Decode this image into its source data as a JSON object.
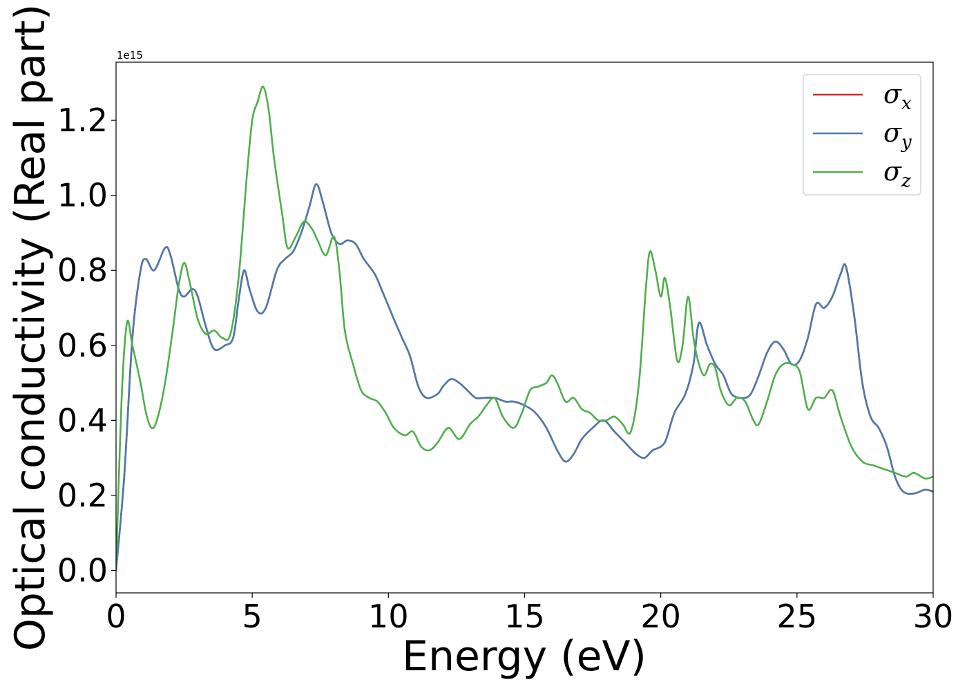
{
  "chart_data": {
    "type": "line",
    "title": "",
    "xlabel": "Energy (eV)",
    "ylabel": "Optical conductivity (Real part)",
    "y_offset_text": "1e15",
    "xlim": [
      0,
      30
    ],
    "ylim": [
      -0.06,
      1.355
    ],
    "x_ticks": [
      0,
      5,
      10,
      15,
      20,
      25,
      30
    ],
    "x_tick_labels": [
      "0",
      "5",
      "10",
      "15",
      "20",
      "25",
      "30"
    ],
    "y_ticks": [
      0.0,
      0.2,
      0.4,
      0.6,
      0.8,
      1.0,
      1.2
    ],
    "y_tick_labels": [
      "0.0",
      "0.2",
      "0.4",
      "0.6",
      "0.8",
      "1.0",
      "1.2"
    ],
    "grid": false,
    "legend_position": "top-right",
    "series": [
      {
        "name": "σx",
        "legend_symbol": "σ",
        "legend_sub": "x",
        "color": "#d62728",
        "points": [
          [
            0,
            0
          ],
          [
            0.3,
            0.25
          ],
          [
            0.6,
            0.62
          ],
          [
            0.9,
            0.8
          ],
          [
            1.1,
            0.83
          ],
          [
            1.4,
            0.8
          ],
          [
            1.8,
            0.86
          ],
          [
            2.0,
            0.84
          ],
          [
            2.3,
            0.75
          ],
          [
            2.5,
            0.73
          ],
          [
            2.8,
            0.75
          ],
          [
            3.0,
            0.73
          ],
          [
            3.3,
            0.65
          ],
          [
            3.6,
            0.59
          ],
          [
            4.0,
            0.6
          ],
          [
            4.3,
            0.62
          ],
          [
            4.5,
            0.72
          ],
          [
            4.7,
            0.8
          ],
          [
            4.9,
            0.75
          ],
          [
            5.2,
            0.69
          ],
          [
            5.5,
            0.7
          ],
          [
            5.9,
            0.8
          ],
          [
            6.2,
            0.83
          ],
          [
            6.5,
            0.85
          ],
          [
            6.8,
            0.9
          ],
          [
            7.1,
            0.97
          ],
          [
            7.35,
            1.03
          ],
          [
            7.6,
            0.98
          ],
          [
            7.9,
            0.9
          ],
          [
            8.2,
            0.87
          ],
          [
            8.5,
            0.88
          ],
          [
            8.8,
            0.87
          ],
          [
            9.1,
            0.83
          ],
          [
            9.5,
            0.79
          ],
          [
            9.8,
            0.74
          ],
          [
            10.2,
            0.67
          ],
          [
            10.5,
            0.62
          ],
          [
            10.8,
            0.57
          ],
          [
            11.1,
            0.49
          ],
          [
            11.4,
            0.46
          ],
          [
            11.8,
            0.47
          ],
          [
            12.0,
            0.49
          ],
          [
            12.3,
            0.51
          ],
          [
            12.6,
            0.5
          ],
          [
            12.9,
            0.48
          ],
          [
            13.2,
            0.46
          ],
          [
            13.5,
            0.46
          ],
          [
            13.9,
            0.46
          ],
          [
            14.3,
            0.45
          ],
          [
            14.6,
            0.45
          ],
          [
            15.0,
            0.44
          ],
          [
            15.4,
            0.42
          ],
          [
            15.8,
            0.38
          ],
          [
            16.2,
            0.32
          ],
          [
            16.5,
            0.29
          ],
          [
            16.8,
            0.31
          ],
          [
            17.1,
            0.35
          ],
          [
            17.5,
            0.38
          ],
          [
            17.9,
            0.4
          ],
          [
            18.3,
            0.37
          ],
          [
            18.7,
            0.34
          ],
          [
            19.1,
            0.31
          ],
          [
            19.4,
            0.3
          ],
          [
            19.7,
            0.32
          ],
          [
            20.0,
            0.33
          ],
          [
            20.2,
            0.35
          ],
          [
            20.5,
            0.42
          ],
          [
            20.9,
            0.47
          ],
          [
            21.2,
            0.55
          ],
          [
            21.4,
            0.66
          ],
          [
            21.7,
            0.6
          ],
          [
            22.0,
            0.55
          ],
          [
            22.3,
            0.52
          ],
          [
            22.6,
            0.47
          ],
          [
            23.0,
            0.46
          ],
          [
            23.3,
            0.47
          ],
          [
            23.6,
            0.52
          ],
          [
            23.9,
            0.58
          ],
          [
            24.2,
            0.61
          ],
          [
            24.5,
            0.59
          ],
          [
            24.8,
            0.55
          ],
          [
            25.1,
            0.56
          ],
          [
            25.4,
            0.62
          ],
          [
            25.7,
            0.71
          ],
          [
            26.0,
            0.7
          ],
          [
            26.3,
            0.73
          ],
          [
            26.6,
            0.79
          ],
          [
            26.8,
            0.81
          ],
          [
            27.1,
            0.68
          ],
          [
            27.4,
            0.5
          ],
          [
            27.7,
            0.41
          ],
          [
            28.0,
            0.38
          ],
          [
            28.3,
            0.33
          ],
          [
            28.6,
            0.25
          ],
          [
            28.9,
            0.21
          ],
          [
            29.3,
            0.205
          ],
          [
            29.7,
            0.215
          ],
          [
            30.0,
            0.21
          ]
        ]
      },
      {
        "name": "σy",
        "legend_symbol": "σ",
        "legend_sub": "y",
        "color": "#4a7bb0",
        "points": [
          [
            0,
            0
          ],
          [
            0.3,
            0.25
          ],
          [
            0.6,
            0.62
          ],
          [
            0.9,
            0.8
          ],
          [
            1.1,
            0.83
          ],
          [
            1.4,
            0.8
          ],
          [
            1.8,
            0.86
          ],
          [
            2.0,
            0.84
          ],
          [
            2.3,
            0.75
          ],
          [
            2.5,
            0.73
          ],
          [
            2.8,
            0.75
          ],
          [
            3.0,
            0.73
          ],
          [
            3.3,
            0.65
          ],
          [
            3.6,
            0.59
          ],
          [
            4.0,
            0.6
          ],
          [
            4.3,
            0.62
          ],
          [
            4.5,
            0.72
          ],
          [
            4.7,
            0.8
          ],
          [
            4.9,
            0.75
          ],
          [
            5.2,
            0.69
          ],
          [
            5.5,
            0.7
          ],
          [
            5.9,
            0.8
          ],
          [
            6.2,
            0.83
          ],
          [
            6.5,
            0.85
          ],
          [
            6.8,
            0.9
          ],
          [
            7.1,
            0.97
          ],
          [
            7.35,
            1.03
          ],
          [
            7.6,
            0.98
          ],
          [
            7.9,
            0.9
          ],
          [
            8.2,
            0.87
          ],
          [
            8.5,
            0.88
          ],
          [
            8.8,
            0.87
          ],
          [
            9.1,
            0.83
          ],
          [
            9.5,
            0.79
          ],
          [
            9.8,
            0.74
          ],
          [
            10.2,
            0.67
          ],
          [
            10.5,
            0.62
          ],
          [
            10.8,
            0.57
          ],
          [
            11.1,
            0.49
          ],
          [
            11.4,
            0.46
          ],
          [
            11.8,
            0.47
          ],
          [
            12.0,
            0.49
          ],
          [
            12.3,
            0.51
          ],
          [
            12.6,
            0.5
          ],
          [
            12.9,
            0.48
          ],
          [
            13.2,
            0.46
          ],
          [
            13.5,
            0.46
          ],
          [
            13.9,
            0.46
          ],
          [
            14.3,
            0.45
          ],
          [
            14.6,
            0.45
          ],
          [
            15.0,
            0.44
          ],
          [
            15.4,
            0.42
          ],
          [
            15.8,
            0.38
          ],
          [
            16.2,
            0.32
          ],
          [
            16.5,
            0.29
          ],
          [
            16.8,
            0.31
          ],
          [
            17.1,
            0.35
          ],
          [
            17.5,
            0.38
          ],
          [
            17.9,
            0.4
          ],
          [
            18.3,
            0.37
          ],
          [
            18.7,
            0.34
          ],
          [
            19.1,
            0.31
          ],
          [
            19.4,
            0.3
          ],
          [
            19.7,
            0.32
          ],
          [
            20.0,
            0.33
          ],
          [
            20.2,
            0.35
          ],
          [
            20.5,
            0.42
          ],
          [
            20.9,
            0.47
          ],
          [
            21.2,
            0.55
          ],
          [
            21.4,
            0.66
          ],
          [
            21.7,
            0.6
          ],
          [
            22.0,
            0.55
          ],
          [
            22.3,
            0.52
          ],
          [
            22.6,
            0.47
          ],
          [
            23.0,
            0.46
          ],
          [
            23.3,
            0.47
          ],
          [
            23.6,
            0.52
          ],
          [
            23.9,
            0.58
          ],
          [
            24.2,
            0.61
          ],
          [
            24.5,
            0.59
          ],
          [
            24.8,
            0.55
          ],
          [
            25.1,
            0.56
          ],
          [
            25.4,
            0.62
          ],
          [
            25.7,
            0.71
          ],
          [
            26.0,
            0.7
          ],
          [
            26.3,
            0.73
          ],
          [
            26.6,
            0.79
          ],
          [
            26.8,
            0.81
          ],
          [
            27.1,
            0.68
          ],
          [
            27.4,
            0.5
          ],
          [
            27.7,
            0.41
          ],
          [
            28.0,
            0.38
          ],
          [
            28.3,
            0.33
          ],
          [
            28.6,
            0.25
          ],
          [
            28.9,
            0.21
          ],
          [
            29.3,
            0.205
          ],
          [
            29.7,
            0.215
          ],
          [
            30.0,
            0.21
          ]
        ]
      },
      {
        "name": "σz",
        "legend_symbol": "σ",
        "legend_sub": "z",
        "color": "#4daf4a",
        "points": [
          [
            0,
            0
          ],
          [
            0.2,
            0.45
          ],
          [
            0.4,
            0.66
          ],
          [
            0.6,
            0.6
          ],
          [
            0.9,
            0.5
          ],
          [
            1.1,
            0.42
          ],
          [
            1.3,
            0.38
          ],
          [
            1.5,
            0.4
          ],
          [
            1.8,
            0.5
          ],
          [
            2.1,
            0.65
          ],
          [
            2.3,
            0.76
          ],
          [
            2.5,
            0.82
          ],
          [
            2.7,
            0.77
          ],
          [
            3.0,
            0.67
          ],
          [
            3.3,
            0.63
          ],
          [
            3.6,
            0.64
          ],
          [
            3.9,
            0.62
          ],
          [
            4.2,
            0.63
          ],
          [
            4.5,
            0.78
          ],
          [
            4.8,
            1.05
          ],
          [
            5.0,
            1.2
          ],
          [
            5.2,
            1.25
          ],
          [
            5.4,
            1.29
          ],
          [
            5.6,
            1.23
          ],
          [
            5.8,
            1.1
          ],
          [
            6.1,
            0.95
          ],
          [
            6.3,
            0.86
          ],
          [
            6.6,
            0.89
          ],
          [
            6.9,
            0.93
          ],
          [
            7.2,
            0.91
          ],
          [
            7.4,
            0.88
          ],
          [
            7.7,
            0.84
          ],
          [
            8.0,
            0.89
          ],
          [
            8.2,
            0.8
          ],
          [
            8.4,
            0.64
          ],
          [
            8.7,
            0.55
          ],
          [
            9.0,
            0.48
          ],
          [
            9.3,
            0.46
          ],
          [
            9.6,
            0.45
          ],
          [
            9.9,
            0.42
          ],
          [
            10.2,
            0.38
          ],
          [
            10.6,
            0.36
          ],
          [
            10.9,
            0.37
          ],
          [
            11.2,
            0.33
          ],
          [
            11.5,
            0.32
          ],
          [
            11.8,
            0.34
          ],
          [
            12.2,
            0.38
          ],
          [
            12.6,
            0.35
          ],
          [
            13.0,
            0.39
          ],
          [
            13.3,
            0.41
          ],
          [
            13.6,
            0.44
          ],
          [
            13.9,
            0.46
          ],
          [
            14.2,
            0.41
          ],
          [
            14.6,
            0.38
          ],
          [
            14.9,
            0.42
          ],
          [
            15.2,
            0.48
          ],
          [
            15.5,
            0.49
          ],
          [
            15.8,
            0.5
          ],
          [
            16.0,
            0.52
          ],
          [
            16.2,
            0.5
          ],
          [
            16.5,
            0.45
          ],
          [
            16.8,
            0.46
          ],
          [
            17.1,
            0.43
          ],
          [
            17.4,
            0.42
          ],
          [
            17.7,
            0.4
          ],
          [
            18.0,
            0.4
          ],
          [
            18.3,
            0.41
          ],
          [
            18.6,
            0.39
          ],
          [
            18.9,
            0.37
          ],
          [
            19.2,
            0.5
          ],
          [
            19.45,
            0.75
          ],
          [
            19.6,
            0.85
          ],
          [
            19.8,
            0.8
          ],
          [
            20.0,
            0.73
          ],
          [
            20.15,
            0.78
          ],
          [
            20.35,
            0.7
          ],
          [
            20.6,
            0.56
          ],
          [
            20.8,
            0.6
          ],
          [
            21.0,
            0.73
          ],
          [
            21.2,
            0.62
          ],
          [
            21.4,
            0.55
          ],
          [
            21.6,
            0.52
          ],
          [
            21.8,
            0.55
          ],
          [
            22.0,
            0.54
          ],
          [
            22.2,
            0.48
          ],
          [
            22.5,
            0.44
          ],
          [
            22.8,
            0.46
          ],
          [
            23.1,
            0.45
          ],
          [
            23.4,
            0.4
          ],
          [
            23.6,
            0.39
          ],
          [
            23.9,
            0.45
          ],
          [
            24.2,
            0.52
          ],
          [
            24.5,
            0.55
          ],
          [
            24.8,
            0.55
          ],
          [
            25.1,
            0.53
          ],
          [
            25.4,
            0.43
          ],
          [
            25.7,
            0.46
          ],
          [
            26.0,
            0.46
          ],
          [
            26.3,
            0.48
          ],
          [
            26.6,
            0.41
          ],
          [
            27.0,
            0.33
          ],
          [
            27.4,
            0.29
          ],
          [
            27.8,
            0.28
          ],
          [
            28.2,
            0.27
          ],
          [
            28.6,
            0.26
          ],
          [
            29.0,
            0.25
          ],
          [
            29.3,
            0.26
          ],
          [
            29.7,
            0.245
          ],
          [
            30.0,
            0.25
          ]
        ]
      }
    ]
  }
}
